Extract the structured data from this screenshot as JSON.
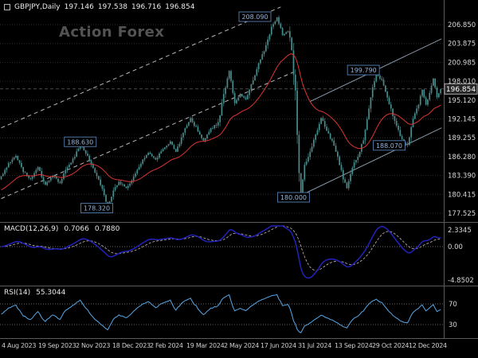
{
  "header": {
    "symbol_timeframe": "GBPJPY,Daily",
    "open": "197.146",
    "high": "197.538",
    "low": "196.716",
    "close": "196.854"
  },
  "watermark": {
    "text": "Action Forex"
  },
  "colors": {
    "background": "#000000",
    "candle": "#4a8c8c",
    "ma": "#dd3434",
    "macd_line": "#2222bb",
    "macd_signal": "#cdb9b9",
    "rsi_line": "#58a8e8",
    "flag_border": "#4f74a0",
    "flag_text": "#9ab4d8",
    "axis_text": "#d8d8d8",
    "grid": "#2e2e2e",
    "separator": "#5a5a5a",
    "trend_dashed": "#b8b8b8",
    "trend_solid": "#8a9aa8",
    "watermark": "#535353"
  },
  "chart_data": {
    "type": "candlestick",
    "symbol": "GBPJPY",
    "timeframe": "Daily",
    "ohlc_display": {
      "open": 197.146,
      "high": 197.538,
      "low": 196.716,
      "close": 196.854
    },
    "current_price": 196.854,
    "num_candles": 240,
    "y_axis": {
      "labels": [
        "206.850",
        "203.875",
        "200.985",
        "198.010",
        "195.120",
        "192.145",
        "189.255",
        "186.280",
        "183.390",
        "180.415",
        "177.525"
      ],
      "min": 177.525,
      "max": 206.85
    },
    "x_axis": {
      "labels": [
        "4 Aug 2023",
        "19 Sep 2023",
        "2 Nov 2023",
        "18 Dec 2023",
        "2 Feb 2024",
        "19 Mar 2024",
        "2 May 2024",
        "17 Jun 2024",
        "31 Jul 2024",
        "13 Sep 2024",
        "29 Oct 2024",
        "12 Dec 2024"
      ],
      "positions": [
        2,
        48,
        95,
        141,
        188,
        234,
        281,
        327,
        374,
        420,
        467,
        513
      ]
    },
    "price_path_anchors": [
      [
        0,
        183.2
      ],
      [
        4,
        185.2
      ],
      [
        8,
        186.4
      ],
      [
        12,
        184.0
      ],
      [
        16,
        182.8
      ],
      [
        20,
        184.6
      ],
      [
        24,
        181.9
      ],
      [
        28,
        183.4
      ],
      [
        32,
        182.2
      ],
      [
        36,
        184.8
      ],
      [
        40,
        186.2
      ],
      [
        43,
        188.4
      ],
      [
        46,
        187.0
      ],
      [
        50,
        184.6
      ],
      [
        54,
        182.0
      ],
      [
        58,
        178.6
      ],
      [
        61,
        180.9
      ],
      [
        64,
        182.4
      ],
      [
        68,
        181.4
      ],
      [
        72,
        183.2
      ],
      [
        76,
        185.4
      ],
      [
        80,
        187.0
      ],
      [
        84,
        185.8
      ],
      [
        88,
        187.6
      ],
      [
        92,
        188.6
      ],
      [
        95,
        187.0
      ],
      [
        100,
        190.6
      ],
      [
        103,
        192.3
      ],
      [
        106,
        190.8
      ],
      [
        110,
        188.8
      ],
      [
        114,
        190.6
      ],
      [
        118,
        191.6
      ],
      [
        122,
        197.2
      ],
      [
        124,
        199.6
      ],
      [
        127,
        194.8
      ],
      [
        130,
        196.0
      ],
      [
        133,
        195.2
      ],
      [
        136,
        197.6
      ],
      [
        140,
        200.8
      ],
      [
        144,
        203.6
      ],
      [
        147,
        206.4
      ],
      [
        150,
        208.0
      ],
      [
        153,
        205.2
      ],
      [
        156,
        206.0
      ],
      [
        158,
        203.0
      ],
      [
        160,
        196.0
      ],
      [
        162,
        184.0
      ],
      [
        163,
        180.6
      ],
      [
        165,
        184.8
      ],
      [
        168,
        187.2
      ],
      [
        171,
        189.6
      ],
      [
        174,
        192.4
      ],
      [
        177,
        190.4
      ],
      [
        180,
        188.6
      ],
      [
        183,
        186.2
      ],
      [
        186,
        183.0
      ],
      [
        188,
        181.4
      ],
      [
        191,
        184.6
      ],
      [
        194,
        186.4
      ],
      [
        197,
        189.0
      ],
      [
        200,
        194.0
      ],
      [
        202,
        197.0
      ],
      [
        204,
        199.4
      ],
      [
        207,
        198.2
      ],
      [
        210,
        195.6
      ],
      [
        213,
        192.8
      ],
      [
        216,
        190.4
      ],
      [
        219,
        188.4
      ],
      [
        221,
        188.2
      ],
      [
        224,
        192.0
      ],
      [
        227,
        194.6
      ],
      [
        229,
        196.8
      ],
      [
        231,
        194.4
      ],
      [
        233,
        196.0
      ],
      [
        235,
        198.4
      ],
      [
        237,
        195.6
      ],
      [
        239,
        196.85
      ]
    ],
    "price_flags": [
      {
        "label": "208.090",
        "price": 208.09,
        "index": 138
      },
      {
        "label": "199.790",
        "price": 199.79,
        "index": 197
      },
      {
        "label": "188.630",
        "price": 188.63,
        "index": 43
      },
      {
        "label": "188.070",
        "price": 188.07,
        "index": 211
      },
      {
        "label": "178.320",
        "price": 178.32,
        "index": 52
      },
      {
        "label": "180.000",
        "price": 180.0,
        "index": 159
      }
    ],
    "trendlines": [
      {
        "style": "dashed",
        "from": [
          0,
          190.8
        ],
        "to": [
          152,
          209.6
        ]
      },
      {
        "style": "dashed",
        "from": [
          0,
          179.8
        ],
        "to": [
          160,
          199.6
        ]
      },
      {
        "style": "solid",
        "from": [
          160,
          179.9
        ],
        "to": [
          239.5,
          190.8
        ]
      },
      {
        "style": "solid",
        "from": [
          168,
          194.9
        ],
        "to": [
          239.5,
          204.65
        ]
      }
    ],
    "moving_average": {
      "type": "EMA",
      "period": 30
    },
    "indicators": [
      {
        "name": "MACD",
        "label": "MACD(12,26,9)",
        "values": [
          "0.7066",
          "0.7880"
        ],
        "axis_labels": [
          "2.3345",
          "0.00",
          "-4.8502"
        ],
        "range": [
          -4.8502,
          2.3345
        ]
      },
      {
        "name": "RSI",
        "label": "RSI(14)",
        "value": "55.3044",
        "axis_labels": [
          "70",
          "30"
        ],
        "levels": [
          70,
          30
        ]
      }
    ]
  }
}
